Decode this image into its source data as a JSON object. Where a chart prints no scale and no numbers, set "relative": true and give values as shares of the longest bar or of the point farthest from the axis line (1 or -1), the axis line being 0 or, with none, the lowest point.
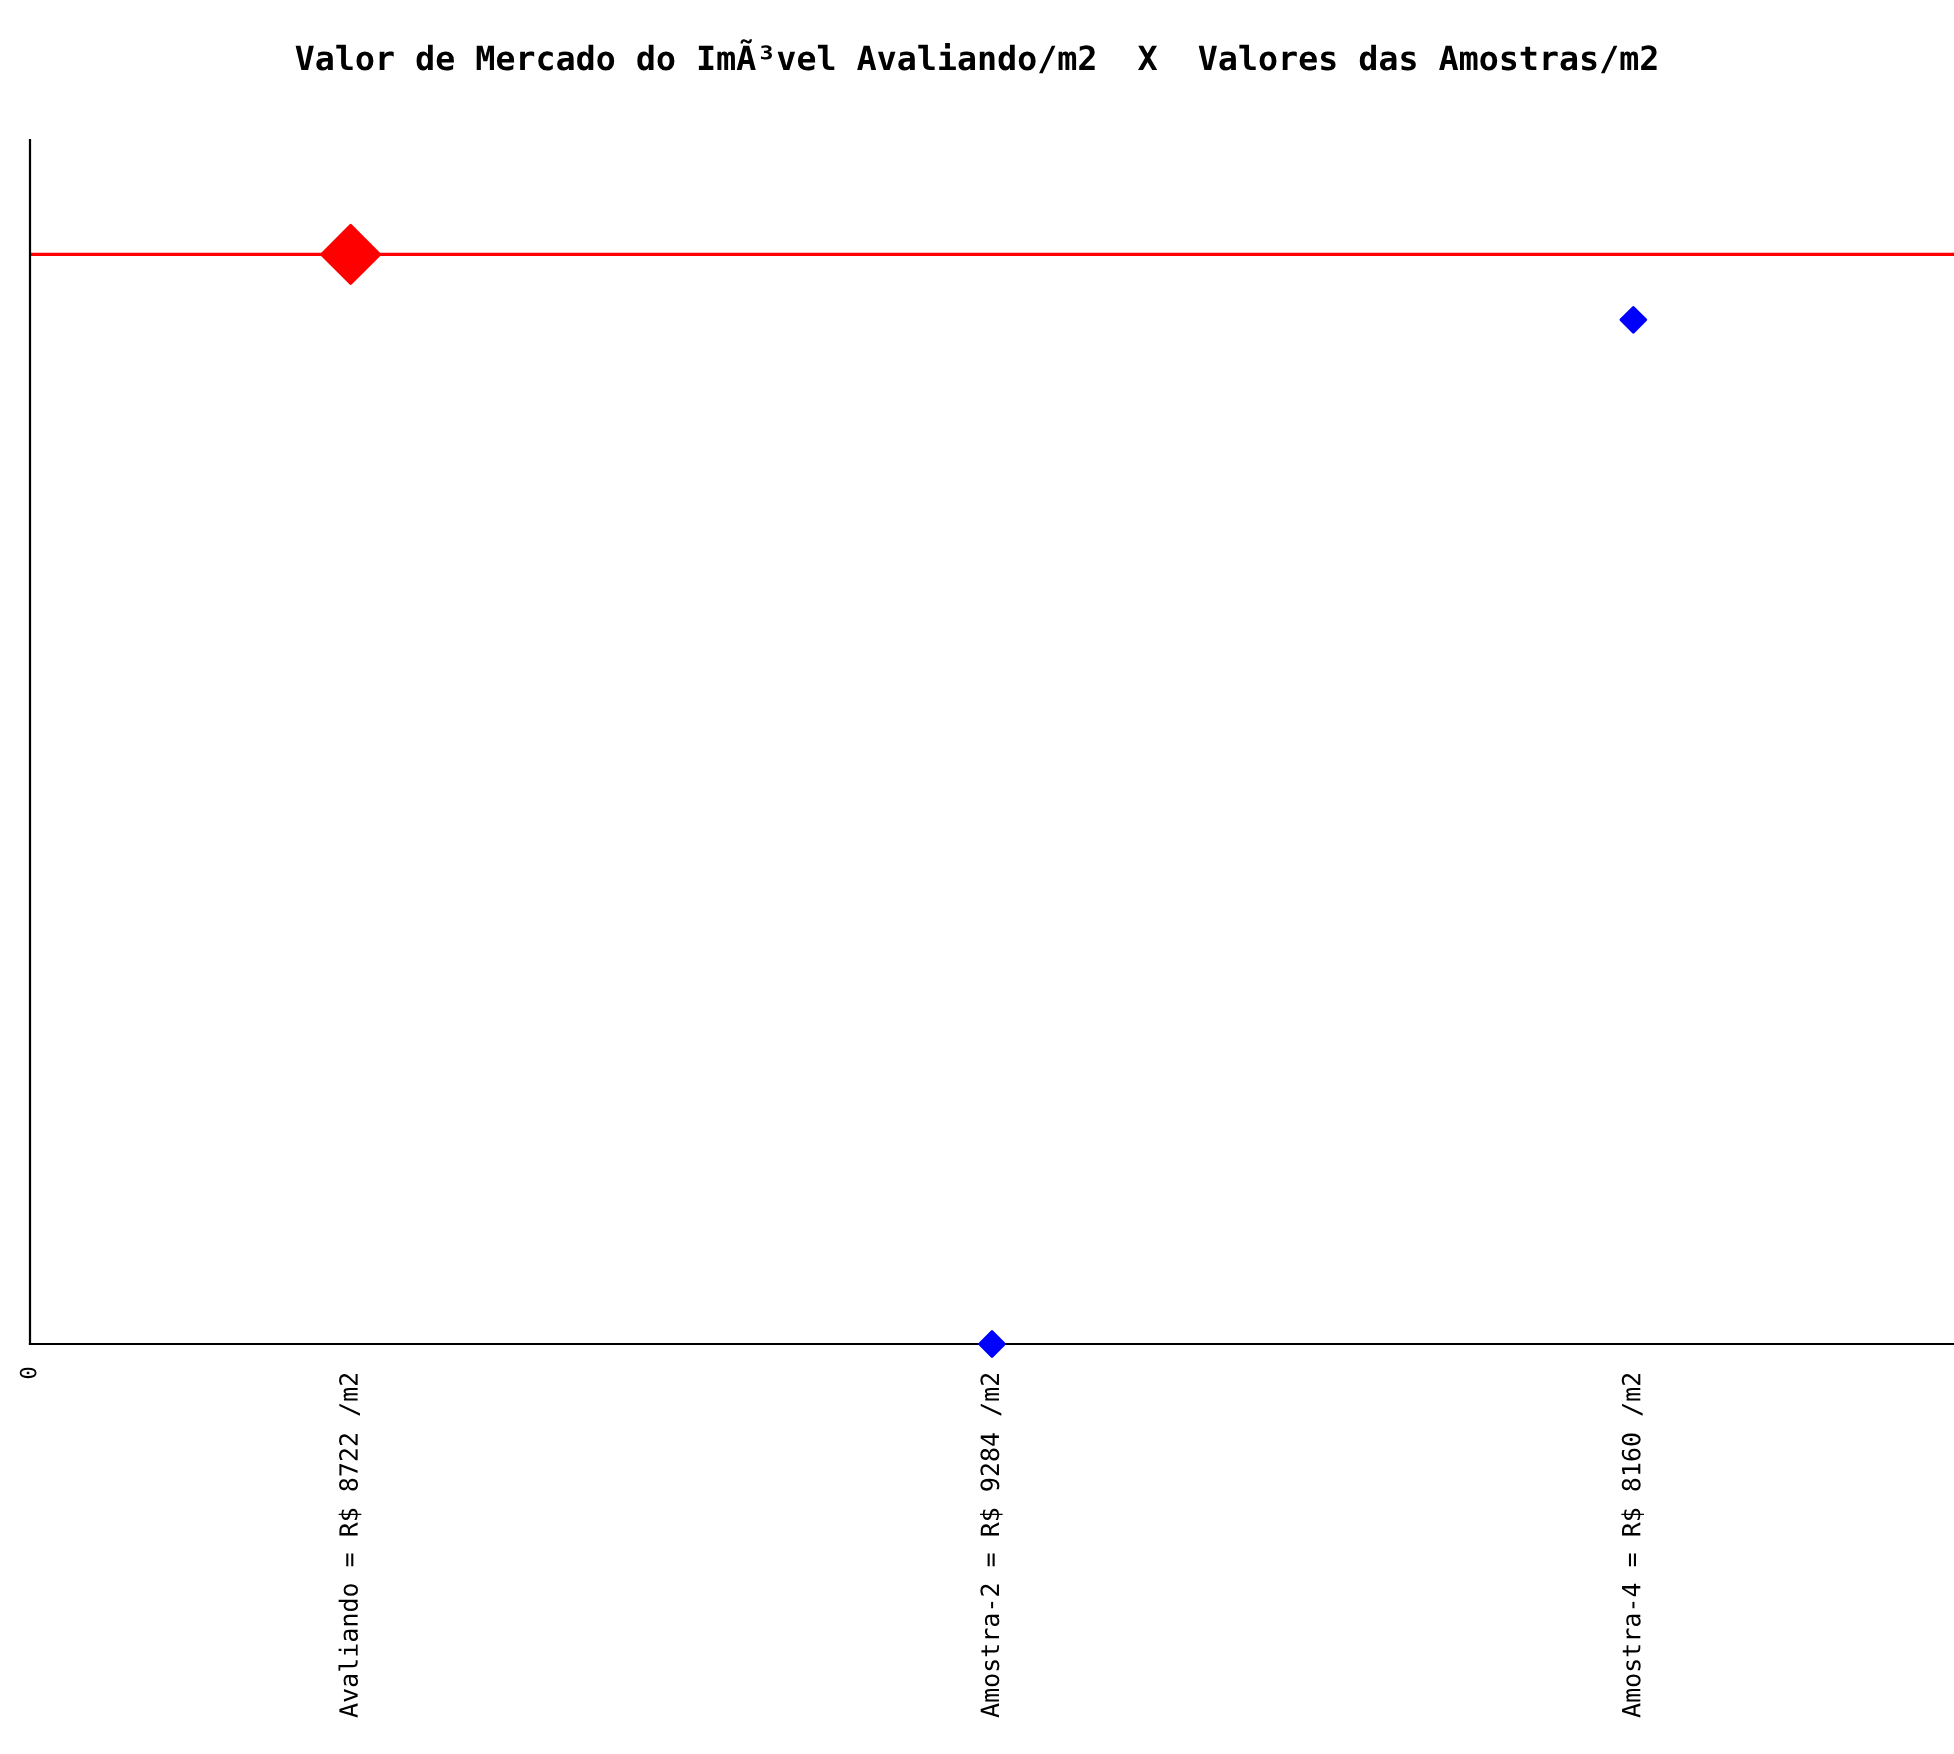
{
  "chart_data": {
    "type": "scatter",
    "title": "Valor de Mercado do ImÃ³vel Avaliando/m2  X  Valores das Amostras/m2",
    "categories": [
      "Avaliando = R$ 8722 /m2",
      "Amostra-2 = R$ 9284 /m2",
      "Amostra-4 = R$ 8160 /m2"
    ],
    "relative": true,
    "marker": "diamond",
    "grid": false,
    "legend": false,
    "series": [
      {
        "color": "#ff0000",
        "values": [
          1,
          null,
          null
        ]
      },
      {
        "color": "#0000ff",
        "values": [
          null,
          0,
          0.94
        ]
      }
    ],
    "ref_lines": [
      {
        "axis": "y",
        "value": 1,
        "color": "#ff0000",
        "line_style": "solid"
      }
    ],
    "annotations": [
      "0"
    ]
  }
}
